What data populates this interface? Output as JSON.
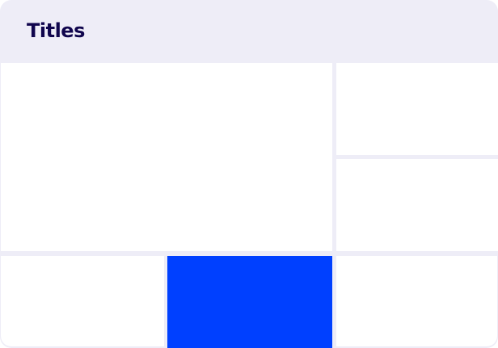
{
  "header": {
    "title": "Titles"
  },
  "colors": {
    "background": "#EEEDF7",
    "title": "#10054D",
    "accent": "#0040FF",
    "cell": "#FFFFFF"
  }
}
